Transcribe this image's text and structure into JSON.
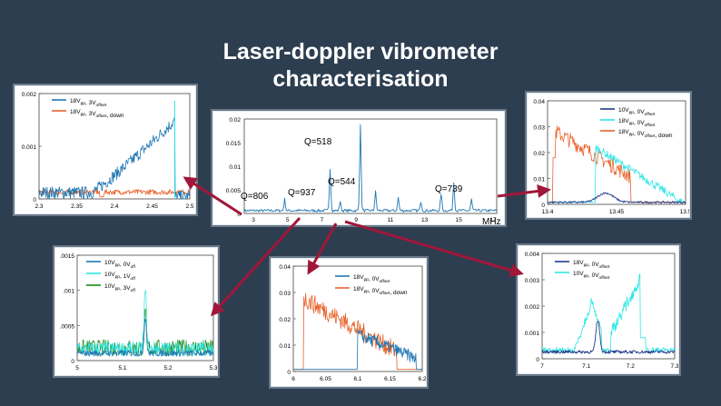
{
  "slide": {
    "title_line1": "Laser-doppler vibrometer",
    "title_line2": "characterisation"
  },
  "colors": {
    "blue": "#1f77b4",
    "orange": "#e8622a",
    "cyan": "#2ee6e6",
    "green": "#1a8a1a",
    "navy": "#1f3c8a",
    "arrow": "#a0173a"
  },
  "overview": {
    "y_ticks": [
      "0.02",
      "0.015",
      "0.01",
      "0.005",
      "0"
    ],
    "x_ticks": [
      "3",
      "5",
      "7",
      "9",
      "11",
      "13",
      "15",
      "17"
    ],
    "x_unit": "MHz",
    "annotations": [
      "Q=518",
      "Q=544",
      "Q=806",
      "Q=937",
      "Q=739"
    ]
  },
  "chart_data": [
    {
      "type": "line",
      "id": "top-left",
      "xlim": [
        2.3,
        2.5
      ],
      "ylim": [
        0,
        0.002
      ],
      "x_ticks": [
        "2.3",
        "2.35",
        "2.4",
        "2.45",
        "2.5"
      ],
      "y_ticks": [
        "0.002",
        "0.001",
        "0"
      ],
      "series": [
        {
          "name": "18Vpp, 3Voffset",
          "color": "blue"
        },
        {
          "name": "18Vpp, 3Voffset, down",
          "color": "orange"
        }
      ],
      "legend": [
        {
          "v": "18V",
          "s1": "pp",
          "mid": ", 3V",
          "s2": "offset",
          "tail": ""
        },
        {
          "v": "18V",
          "s1": "pp",
          "mid": ", 3V",
          "s2": "offset",
          "tail": ", down"
        }
      ]
    },
    {
      "type": "line",
      "id": "top-right",
      "xlim": [
        13.4,
        13.55
      ],
      "ylim": [
        0,
        0.04
      ],
      "x_ticks": [
        "13.4",
        "13.45",
        "13.5"
      ],
      "y_ticks": [
        "0.04",
        "0.03",
        "0.02",
        "0.01",
        "0"
      ],
      "series": [
        {
          "name": "10Vpp, 0Voffset",
          "color": "navy"
        },
        {
          "name": "18Vpp, 0Voffset",
          "color": "cyan"
        },
        {
          "name": "18Vpp, 0Voffset, down",
          "color": "orange"
        }
      ],
      "legend": [
        {
          "v": "10V",
          "s1": "pp",
          "mid": ", 0V",
          "s2": "offset",
          "tail": ""
        },
        {
          "v": "18V",
          "s1": "pp",
          "mid": ", 0V",
          "s2": "offset",
          "tail": ""
        },
        {
          "v": "18V",
          "s1": "pp",
          "mid": ", 0V",
          "s2": "offset",
          "tail": ", down"
        }
      ]
    },
    {
      "type": "line",
      "id": "bottom-left",
      "xlim": [
        5,
        5.3
      ],
      "ylim": [
        0,
        0.0015
      ],
      "x_ticks": [
        "5",
        "5.1",
        "5.2",
        "5.3"
      ],
      "y_ticks": [
        ".0015",
        ".001",
        ".0005",
        "0"
      ],
      "series": [
        {
          "name": "10Vpp, 0Voff",
          "color": "blue"
        },
        {
          "name": "10Vpp, 1Voff",
          "color": "cyan"
        },
        {
          "name": "10Vpp, 3Voff",
          "color": "green"
        }
      ],
      "legend": [
        {
          "v": "10V",
          "s1": "pp",
          "mid": ", 0V",
          "s2": "off",
          "tail": ""
        },
        {
          "v": "10V",
          "s1": "pp",
          "mid": ", 1V",
          "s2": "off",
          "tail": ""
        },
        {
          "v": "10V",
          "s1": "pp",
          "mid": ", 3V",
          "s2": "off",
          "tail": ""
        }
      ]
    },
    {
      "type": "line",
      "id": "bottom-middle",
      "xlim": [
        5.975,
        6.2
      ],
      "ylim": [
        0,
        0.04
      ],
      "x_ticks": [
        "6",
        "6.05",
        "6.1",
        "6.15",
        "6.2"
      ],
      "y_ticks": [
        "0.04",
        "0.03",
        "0.02",
        "0.01",
        "0"
      ],
      "series": [
        {
          "name": "18Vpp, 0Voffset",
          "color": "blue"
        },
        {
          "name": "18Vpp, 0Voffset, down",
          "color": "orange"
        }
      ],
      "legend": [
        {
          "v": "18V",
          "s1": "pp",
          "mid": ", 0V",
          "s2": "offset",
          "tail": ""
        },
        {
          "v": "18V",
          "s1": "pp",
          "mid": ", 0V",
          "s2": "offset",
          "tail": ", down"
        }
      ]
    },
    {
      "type": "line",
      "id": "bottom-right",
      "xlim": [
        7,
        7.3
      ],
      "ylim": [
        0,
        0.004
      ],
      "x_ticks": [
        "7",
        "7.1",
        "7.2",
        "7.3"
      ],
      "y_ticks": [
        "0.004",
        "0.003",
        "0.002",
        "0.001",
        "0"
      ],
      "series": [
        {
          "name": "18Vpp, 0Voffset",
          "color": "navy"
        },
        {
          "name": "10Vpp, 0Voffset",
          "color": "cyan"
        }
      ],
      "legend": [
        {
          "v": "18V",
          "s1": "pp",
          "mid": ", 0V",
          "s2": "offset",
          "tail": ""
        },
        {
          "v": "10V",
          "s1": "pp",
          "mid": ", 0V",
          "s2": "offset",
          "tail": ""
        }
      ]
    }
  ]
}
